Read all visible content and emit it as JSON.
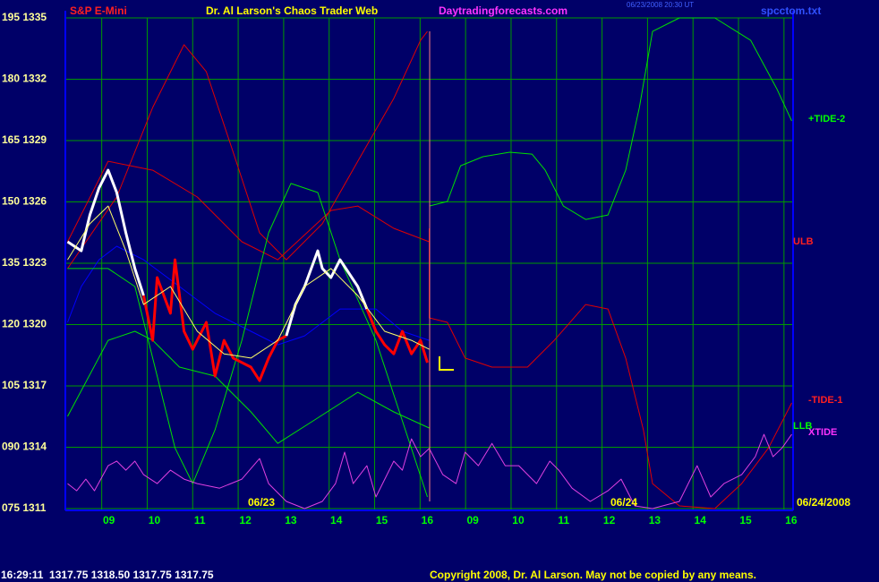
{
  "chart_data": {
    "type": "line",
    "symbol": "S&P E-Mini",
    "title": "Dr. Al Larson's Chaos Trader Web",
    "site": "Daytradingforecasts.com",
    "timestamp": "06/23/2008 20:30 UT",
    "file": "spcctom.txt",
    "labels": [
      "+TIDE-2",
      "ULB",
      "-TIDE-1",
      "LLB",
      "XTIDE"
    ],
    "date_labels": [
      "06/23",
      "06/24",
      "06/24/2008"
    ],
    "quote": "16:29:11  1317.75 1318.50 1317.75 1317.75",
    "copyright": "Copyright 2008, Dr. Al Larson. May not be copied by any means.",
    "grid": true,
    "xlim": [
      -0.8,
      15.2
    ],
    "xticks": [
      {
        "value": 0,
        "label": "09"
      },
      {
        "value": 1,
        "label": "10"
      },
      {
        "value": 2,
        "label": "11"
      },
      {
        "value": 3,
        "label": "12"
      },
      {
        "value": 4,
        "label": "13"
      },
      {
        "value": 5,
        "label": "14"
      },
      {
        "value": 6,
        "label": "15"
      },
      {
        "value": 7,
        "label": "16"
      },
      {
        "value": 8,
        "label": "09"
      },
      {
        "value": 9,
        "label": "10"
      },
      {
        "value": 10,
        "label": "11"
      },
      {
        "value": 11,
        "label": "12"
      },
      {
        "value": 12,
        "label": "13"
      },
      {
        "value": 13,
        "label": "14"
      },
      {
        "value": 14,
        "label": "15"
      },
      {
        "value": 15,
        "label": "16"
      }
    ],
    "ylim": [
      1311,
      1335
    ],
    "yticks": [
      {
        "value": 1311,
        "label": "075 1311"
      },
      {
        "value": 1314,
        "label": "090 1314"
      },
      {
        "value": 1317,
        "label": "105 1317"
      },
      {
        "value": 1320,
        "label": "120 1320"
      },
      {
        "value": 1323,
        "label": "135 1323"
      },
      {
        "value": 1326,
        "label": "150 1326"
      },
      {
        "value": 1329,
        "label": "165 1329"
      },
      {
        "value": 1332,
        "label": "180 1332"
      },
      {
        "value": 1335,
        "label": "195 1335"
      }
    ],
    "series": [
      {
        "color": "#0000ff",
        "width": 1,
        "x": [
          -0.75,
          -0.45,
          -0.06,
          0.33,
          0.92,
          1.71,
          2.49,
          3.28,
          3.87,
          4.46,
          5.24,
          6.03,
          6.61,
          7.2
        ],
        "values": [
          1320.11,
          1321.86,
          1323.17,
          1323.83,
          1323.17,
          1321.86,
          1320.55,
          1319.67,
          1319.01,
          1319.45,
          1320.76,
          1320.76,
          1319.67,
          1319.23
        ]
      },
      {
        "color": "#e00000",
        "width": 1,
        "x": [
          -0.75,
          0.33,
          1.12,
          1.81,
          2.3,
          2.89,
          3.47,
          4.06,
          4.85,
          5.63,
          6.42,
          7.01,
          7.16
        ],
        "values": [
          1322.74,
          1326.24,
          1330.62,
          1333.69,
          1332.37,
          1328.43,
          1324.49,
          1323.17,
          1324.93,
          1327.99,
          1331.06,
          1333.9,
          1334.34
        ]
      },
      {
        "color": "#e00000",
        "width": 1,
        "x": [
          -0.75,
          0.14,
          1.12,
          2.1,
          3.08,
          3.87,
          5.04,
          5.63,
          6.42,
          7.2
        ],
        "values": [
          1324.05,
          1327.99,
          1327.55,
          1326.24,
          1324.05,
          1323.17,
          1325.58,
          1325.8,
          1324.71,
          1324.05
        ]
      },
      {
        "color": "#e00000",
        "width": 1,
        "x": [
          7.2,
          7.2,
          7.6,
          7.99,
          8.58,
          9.36,
          9.95,
          10.64,
          11.13,
          11.52,
          11.91,
          12.11,
          12.7,
          13.48,
          14.07,
          14.66,
          15.17
        ],
        "values": [
          1324.71,
          1320.33,
          1320.11,
          1318.36,
          1317.92,
          1317.92,
          1319.23,
          1320.98,
          1320.76,
          1318.36,
          1314.85,
          1312.22,
          1311.13,
          1311.0,
          1312.22,
          1313.97,
          1316.17
        ]
      },
      {
        "color": "#00e000",
        "width": 1,
        "x": [
          -0.75,
          0.14,
          0.73,
          1.22,
          1.61,
          2.0,
          2.49,
          3.08,
          3.67,
          4.16,
          4.75,
          5.24,
          6.03,
          6.61,
          7.16
        ],
        "values": [
          1322.74,
          1322.74,
          1321.86,
          1317.48,
          1313.97,
          1312.22,
          1314.85,
          1319.23,
          1324.49,
          1326.9,
          1326.46,
          1323.17,
          1319.23,
          1315.29,
          1311.57
        ]
      },
      {
        "color": "#00e000",
        "width": 1,
        "x": [
          -0.75,
          0.14,
          0.73,
          1.12,
          1.71,
          2.49,
          3.28,
          3.87,
          4.65,
          5.63,
          6.42,
          7.2
        ],
        "values": [
          1315.51,
          1319.23,
          1319.67,
          1319.23,
          1317.92,
          1317.48,
          1315.73,
          1314.19,
          1315.29,
          1316.69,
          1315.73,
          1314.94
        ]
      },
      {
        "color": "#00e000",
        "width": 1,
        "x": [
          7.2,
          7.6,
          7.89,
          8.38,
          8.97,
          9.46,
          9.75,
          10.15,
          10.64,
          11.13,
          11.52,
          11.82,
          12.11,
          12.7,
          13.48,
          14.27,
          14.85,
          15.17
        ],
        "values": [
          1325.8,
          1326.02,
          1327.77,
          1328.21,
          1328.43,
          1328.34,
          1327.55,
          1325.8,
          1325.14,
          1325.36,
          1327.55,
          1330.62,
          1334.34,
          1335.0,
          1335.0,
          1333.9,
          1331.5,
          1329.96
        ]
      },
      {
        "color": "#e040e0",
        "width": 1,
        "x": [
          -0.75,
          -0.55,
          -0.35,
          -0.16,
          0.14,
          0.33,
          0.53,
          0.73,
          0.92,
          1.22,
          1.51,
          1.81,
          2.1,
          2.59,
          3.08,
          3.47,
          3.67,
          4.06,
          4.46,
          4.85,
          5.14,
          5.34,
          5.53,
          5.83,
          6.03,
          6.42,
          6.61,
          6.81,
          7.01,
          7.2,
          7.5,
          7.79,
          7.99,
          8.28,
          8.58,
          8.87,
          9.17,
          9.56,
          9.85,
          10.05,
          10.34,
          10.74,
          11.13,
          11.42,
          11.72,
          12.11,
          12.7,
          13.09,
          13.39,
          13.68,
          14.07,
          14.37,
          14.56,
          14.76,
          14.96,
          15.17
        ],
        "values": [
          1312.22,
          1311.87,
          1312.44,
          1311.87,
          1313.1,
          1313.32,
          1312.88,
          1313.32,
          1312.66,
          1312.22,
          1312.88,
          1312.44,
          1312.22,
          1312.0,
          1312.44,
          1313.45,
          1312.22,
          1311.35,
          1311.0,
          1311.35,
          1312.22,
          1313.76,
          1312.22,
          1313.1,
          1311.57,
          1313.32,
          1312.88,
          1314.41,
          1313.54,
          1313.94,
          1312.66,
          1312.22,
          1313.76,
          1313.1,
          1314.19,
          1313.1,
          1313.1,
          1312.22,
          1313.32,
          1312.88,
          1312.0,
          1311.35,
          1311.87,
          1312.44,
          1311.13,
          1311.0,
          1311.35,
          1313.1,
          1311.57,
          1312.22,
          1312.66,
          1313.54,
          1314.63,
          1313.54,
          1313.97,
          1314.63
        ]
      },
      {
        "color": "#ffffff",
        "width": 3,
        "x": [
          -0.75,
          -0.45,
          -0.26,
          -0.06,
          0.14,
          0.33,
          0.53,
          0.73,
          0.92
        ],
        "values": [
          1324.05,
          1323.61,
          1325.36,
          1326.68,
          1327.55,
          1326.46,
          1324.49,
          1322.74,
          1321.42
        ]
      },
      {
        "color": "#ff0000",
        "width": 3,
        "x": [
          0.92,
          1.12,
          1.22,
          1.51,
          1.61,
          1.81,
          2.0,
          2.3,
          2.49,
          2.69,
          2.89,
          3.28,
          3.47,
          3.67,
          3.87,
          4.06
        ],
        "values": [
          1321.42,
          1319.23,
          1322.3,
          1320.55,
          1323.17,
          1319.67,
          1318.79,
          1320.11,
          1317.48,
          1319.23,
          1318.36,
          1317.92,
          1317.26,
          1318.36,
          1319.23,
          1319.45
        ]
      },
      {
        "color": "#ffffff",
        "width": 3,
        "x": [
          4.06,
          4.26,
          4.46,
          4.75,
          4.85,
          5.04,
          5.24,
          5.63,
          5.83
        ],
        "values": [
          1319.45,
          1320.98,
          1321.86,
          1323.61,
          1322.74,
          1322.3,
          1323.17,
          1321.86,
          1320.76
        ]
      },
      {
        "color": "#ff0000",
        "width": 3,
        "x": [
          5.83,
          6.03,
          6.22,
          6.42,
          6.61,
          6.81,
          7.01,
          7.16
        ],
        "values": [
          1320.76,
          1319.67,
          1319.01,
          1318.57,
          1319.67,
          1318.57,
          1319.23,
          1318.14
        ]
      },
      {
        "color": "#ffff66",
        "width": 1,
        "x": [
          -0.75,
          -0.26,
          0.14,
          0.53,
          0.92,
          1.51,
          2.1,
          2.69,
          3.28,
          3.87,
          4.46,
          5.04,
          5.63,
          6.22,
          6.81,
          7.2
        ],
        "values": [
          1323.17,
          1324.93,
          1325.8,
          1323.61,
          1320.98,
          1321.86,
          1319.67,
          1318.57,
          1318.36,
          1319.23,
          1321.86,
          1322.74,
          1321.42,
          1319.67,
          1319.23,
          1318.79
        ]
      }
    ]
  }
}
